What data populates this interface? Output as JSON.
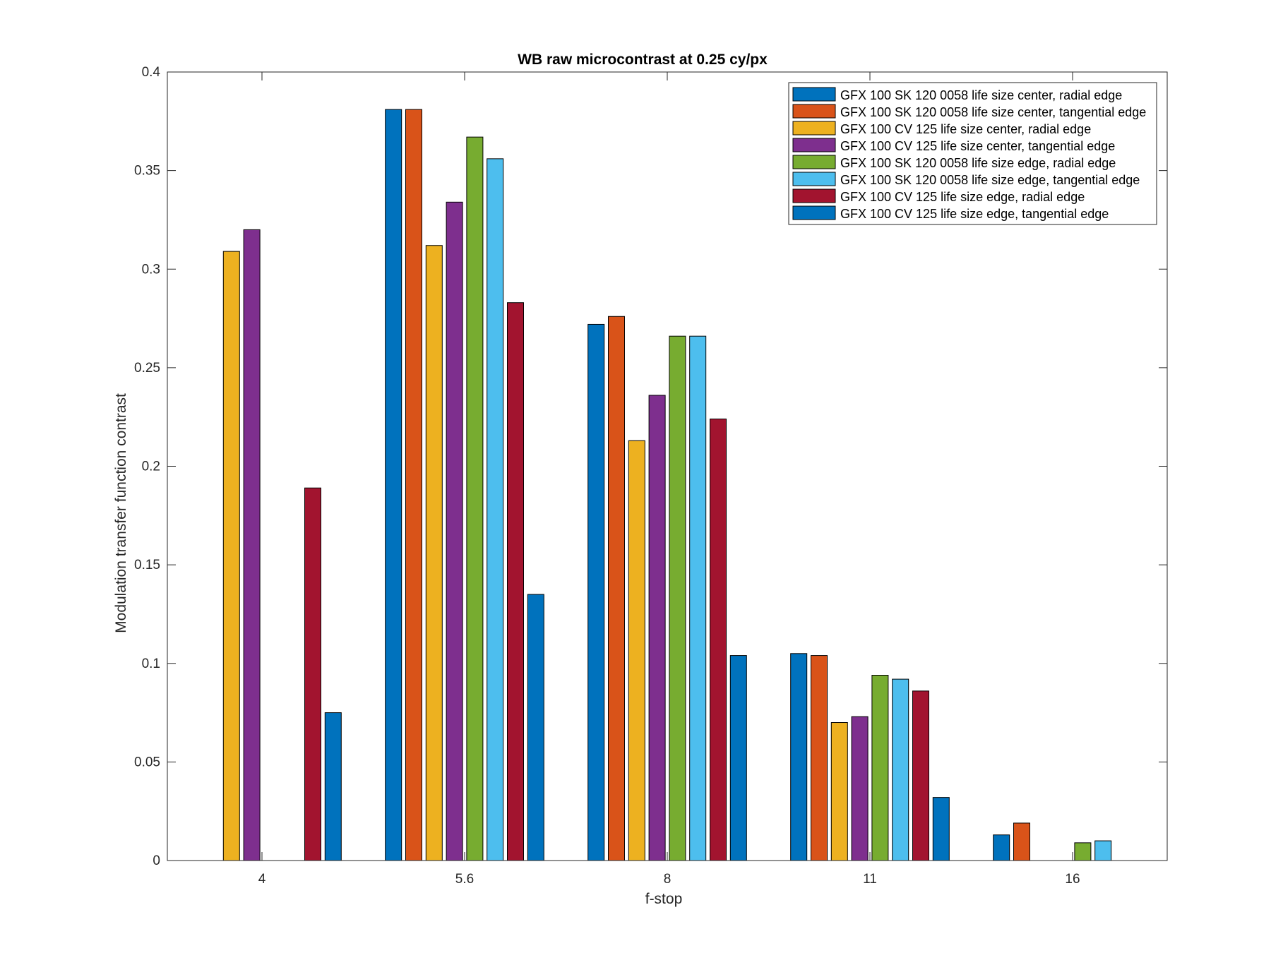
{
  "chart_data": {
    "type": "bar",
    "title": "WB raw  microcontrast at 0.25 cy/px",
    "xlabel": "f-stop",
    "ylabel": "Modulation transfer function contrast",
    "categories": [
      "4",
      "5.6",
      "8",
      "11",
      "16"
    ],
    "ylim": [
      0,
      0.4
    ],
    "yticks": [
      0,
      0.05,
      0.1,
      0.15,
      0.2,
      0.25,
      0.3,
      0.35,
      0.4
    ],
    "ytick_labels": [
      "0",
      "0.05",
      "0.1",
      "0.15",
      "0.2",
      "0.25",
      "0.3",
      "0.35",
      "0.4"
    ],
    "grid": false,
    "legend_position": "top-right",
    "series": [
      {
        "name": "GFX 100 SK 120 0058 life size center, radial edge",
        "color": "#0072BD",
        "values": [
          0,
          0.381,
          0.272,
          0.105,
          0.013
        ]
      },
      {
        "name": "GFX 100 SK 120 0058 life size center, tangential edge",
        "color": "#D95319",
        "values": [
          0,
          0.381,
          0.276,
          0.104,
          0.019
        ]
      },
      {
        "name": "GFX 100 CV 125 life size center, radial edge",
        "color": "#EDB120",
        "values": [
          0.309,
          0.312,
          0.213,
          0.07,
          0
        ]
      },
      {
        "name": "GFX 100 CV 125 life size center, tangential edge",
        "color": "#7E2F8E",
        "values": [
          0.32,
          0.334,
          0.236,
          0.073,
          0
        ]
      },
      {
        "name": "GFX 100 SK 120 0058 life size edge, radial edge",
        "color": "#77AC30",
        "values": [
          0,
          0.367,
          0.266,
          0.094,
          0.009
        ]
      },
      {
        "name": "GFX 100 SK 120 0058 life size edge, tangential edge",
        "color": "#4DBEEE",
        "values": [
          0,
          0.356,
          0.266,
          0.092,
          0.01
        ]
      },
      {
        "name": "GFX 100 CV 125 life size edge, radial edge",
        "color": "#A2142F",
        "values": [
          0.189,
          0.283,
          0.224,
          0.086,
          0
        ]
      },
      {
        "name": "GFX 100 CV 125 life size edge, tangential edge",
        "color": "#0072BD",
        "values": [
          0.075,
          0.135,
          0.104,
          0.032,
          0
        ]
      }
    ]
  }
}
